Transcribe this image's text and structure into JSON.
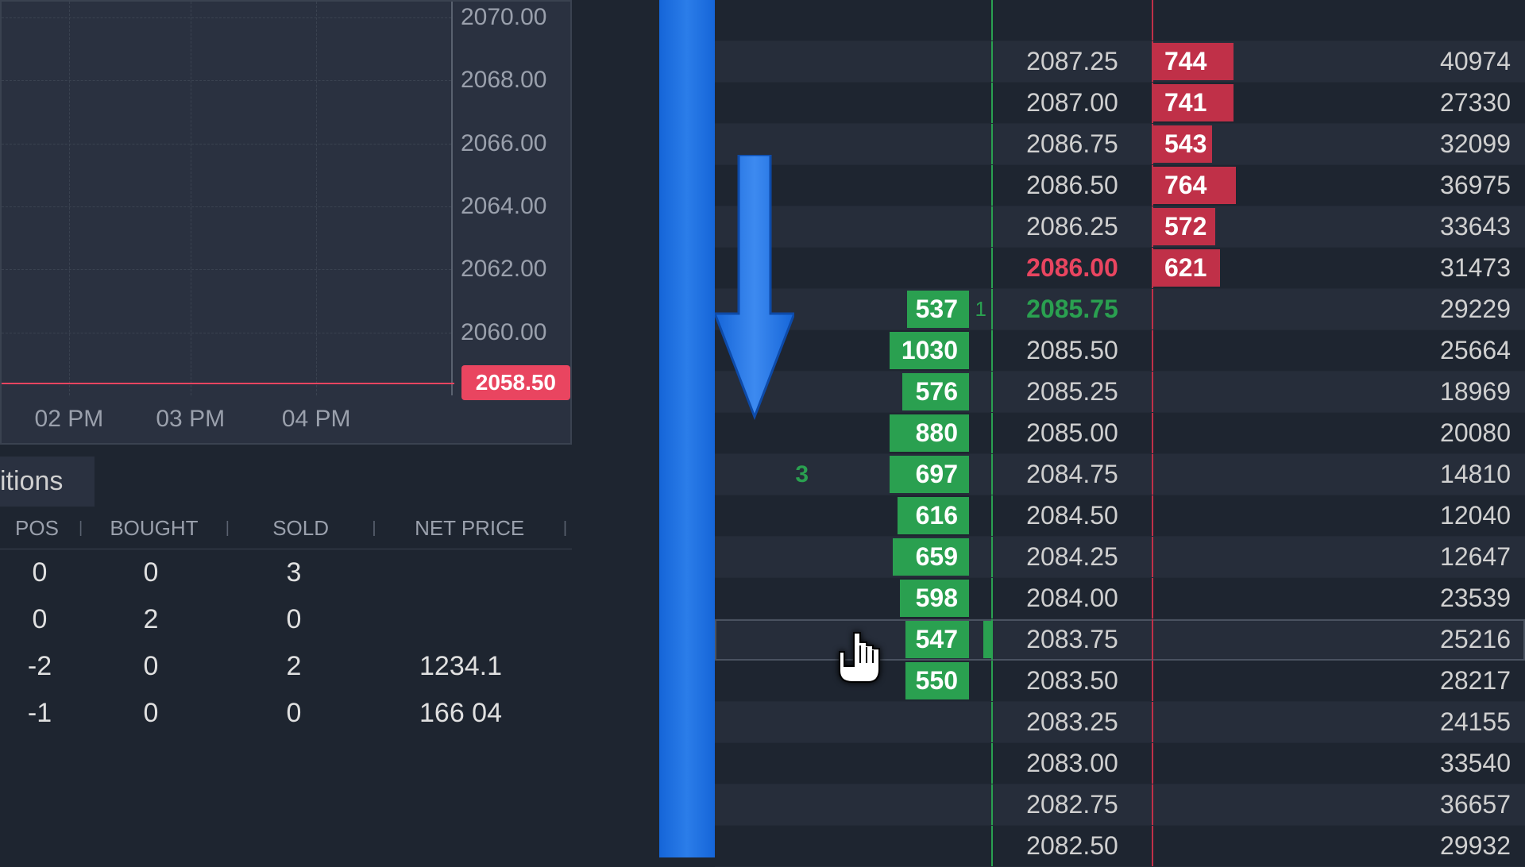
{
  "chart": {
    "y_ticks": [
      "2070.00",
      "2068.00",
      "2066.00",
      "2064.00",
      "2062.00",
      "2060.00"
    ],
    "y_tick_positions_pct": [
      4,
      20,
      36,
      52,
      68,
      84
    ],
    "x_ticks": [
      "02 PM",
      "03 PM",
      "04 PM"
    ],
    "x_tick_positions_pct": [
      15,
      42,
      70
    ],
    "current_price": "2058.50",
    "current_price_y_pct": 96,
    "grid_color": "#3a4250",
    "price_tag_bg": "#e94560"
  },
  "positions": {
    "tab_label": "itions",
    "headers": [
      "POS",
      "BOUGHT",
      "SOLD",
      "NET PRICE"
    ],
    "rows": [
      {
        "pos": "0",
        "bought": "0",
        "sold": "3",
        "net": ""
      },
      {
        "pos": "0",
        "bought": "2",
        "sold": "0",
        "net": ""
      },
      {
        "pos": "-2",
        "bought": "0",
        "sold": "2",
        "net": "1234.1"
      },
      {
        "pos": "-1",
        "bought": "0",
        "sold": "0",
        "net": "166 04"
      }
    ]
  },
  "dom": {
    "max_bar": 1030,
    "bid_color": "#2aa050",
    "ask_color": "#c03048",
    "best_bid_price": "2085.75",
    "best_ask_price": "2086.00",
    "highlight_price": "2083.75",
    "working_order": {
      "price": "2084.75",
      "qty": "3"
    },
    "rows": [
      {
        "price": "",
        "ask": "",
        "vol": ""
      },
      {
        "price": "2087.25",
        "ask": "744",
        "vol": "40974"
      },
      {
        "price": "2087.00",
        "ask": "741",
        "vol": "27330"
      },
      {
        "price": "2086.75",
        "ask": "543",
        "vol": "32099"
      },
      {
        "price": "2086.50",
        "ask": "764",
        "vol": "36975"
      },
      {
        "price": "2086.25",
        "ask": "572",
        "vol": "33643"
      },
      {
        "price": "2086.00",
        "ask": "621",
        "vol": "31473",
        "best_ask": true
      },
      {
        "price": "2085.75",
        "bid": "537",
        "bidmark": "1",
        "vol": "29229",
        "best_bid": true
      },
      {
        "price": "2085.50",
        "bid": "1030",
        "vol": "25664"
      },
      {
        "price": "2085.25",
        "bid": "576",
        "vol": "18969"
      },
      {
        "price": "2085.00",
        "bid": "880",
        "vol": "20080"
      },
      {
        "price": "2084.75",
        "bid": "697",
        "order": "3",
        "vol": "14810"
      },
      {
        "price": "2084.50",
        "bid": "616",
        "vol": "12040"
      },
      {
        "price": "2084.25",
        "bid": "659",
        "vol": "12647"
      },
      {
        "price": "2084.00",
        "bid": "598",
        "vol": "23539"
      },
      {
        "price": "2083.75",
        "bid": "547",
        "vol": "25216",
        "highlight": true
      },
      {
        "price": "2083.50",
        "bid": "550",
        "vol": "28217"
      },
      {
        "price": "2083.25",
        "vol": "24155"
      },
      {
        "price": "2083.00",
        "vol": "33540"
      },
      {
        "price": "2082.75",
        "vol": "36657"
      },
      {
        "price": "2082.50",
        "vol": "29932"
      }
    ]
  },
  "colors": {
    "bg": "#1e2530",
    "panel": "#2a3140",
    "text": "#e0e0e0",
    "muted": "#9aa0ac",
    "blue": "#2b7de9"
  }
}
